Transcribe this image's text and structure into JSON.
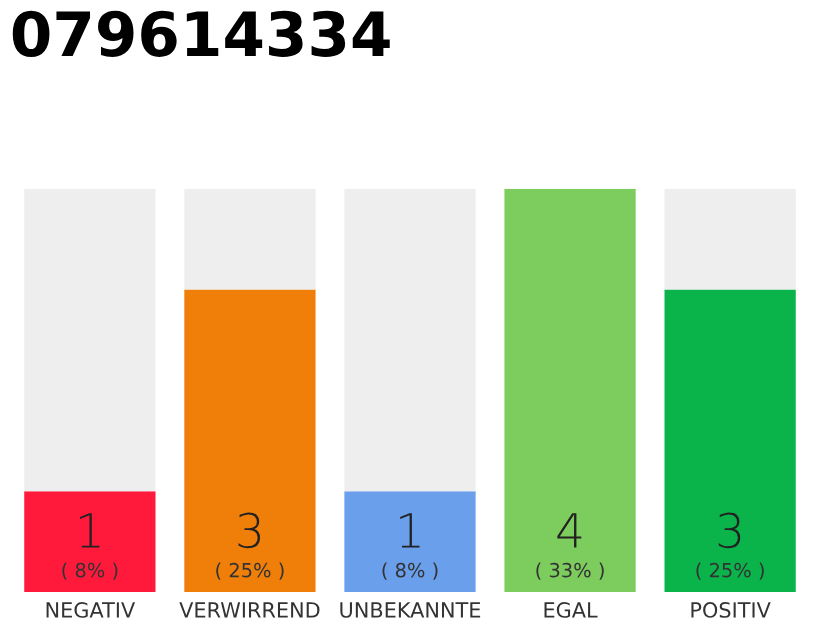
{
  "chart_data": {
    "type": "bar",
    "title": "079614334",
    "categories": [
      "NEGATIV",
      "VERWIRREND",
      "UNBEKANNTE",
      "EGAL",
      "POSITIV"
    ],
    "stacked": true,
    "tick_labels": "x",
    "grid": false,
    "legend": false,
    "annotations": [
      "( 8% )",
      "( 25% )",
      "( 8% )",
      "( 33% )",
      "( 25% )"
    ],
    "series": [
      {
        "colors": [
          "#ff1a3c",
          "#f07f0a",
          "#6a9fec",
          "#7dcc5e",
          "#0ab44a"
        ],
        "values": [
          1,
          3,
          1,
          4,
          3
        ],
        "value_labels": [
          "1",
          "3",
          "1",
          "4",
          "3"
        ]
      },
      {
        "color": "#eeeeee",
        "values": [
          3,
          1,
          3,
          0,
          1
        ],
        "value_labels": [
          null,
          null,
          null,
          null,
          null
        ]
      }
    ]
  }
}
